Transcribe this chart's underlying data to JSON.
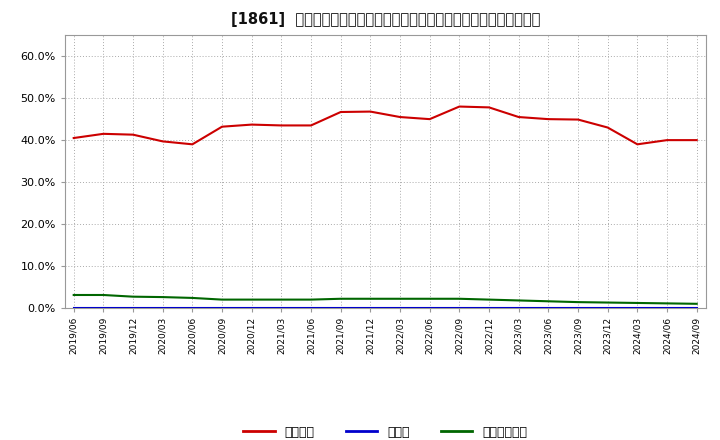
{
  "title": "[1861]  自己資本、のれん、繰延税金資産の総資産に対する比率の推移",
  "x_labels": [
    "2019/06",
    "2019/09",
    "2019/12",
    "2020/03",
    "2020/06",
    "2020/09",
    "2020/12",
    "2021/03",
    "2021/06",
    "2021/09",
    "2021/12",
    "2022/03",
    "2022/06",
    "2022/09",
    "2022/12",
    "2023/03",
    "2023/06",
    "2023/09",
    "2023/12",
    "2024/03",
    "2024/06",
    "2024/09"
  ],
  "equity": [
    0.405,
    0.415,
    0.413,
    0.397,
    0.39,
    0.432,
    0.437,
    0.435,
    0.435,
    0.467,
    0.468,
    0.455,
    0.45,
    0.48,
    0.478,
    0.455,
    0.45,
    0.449,
    0.43,
    0.39,
    0.4,
    0.4
  ],
  "goodwill": [
    0.0,
    0.0,
    0.0,
    0.0,
    0.0,
    0.0,
    0.0,
    0.0,
    0.0,
    0.0,
    0.0,
    0.0,
    0.0,
    0.0,
    0.0,
    0.0,
    0.0,
    0.0,
    0.0,
    0.0,
    0.0,
    0.0
  ],
  "deferred_tax": [
    0.031,
    0.031,
    0.027,
    0.026,
    0.024,
    0.02,
    0.02,
    0.02,
    0.02,
    0.022,
    0.022,
    0.022,
    0.022,
    0.022,
    0.02,
    0.018,
    0.016,
    0.014,
    0.013,
    0.012,
    0.011,
    0.01
  ],
  "equity_color": "#cc0000",
  "goodwill_color": "#0000cc",
  "deferred_tax_color": "#006600",
  "background_color": "#ffffff",
  "plot_bg_color": "#ffffff",
  "grid_color": "#aaaaaa",
  "ylim": [
    0.0,
    0.65
  ],
  "yticks": [
    0.0,
    0.1,
    0.2,
    0.3,
    0.4,
    0.5,
    0.6
  ],
  "legend_labels": [
    "自己資本",
    "のれん",
    "繰延税金資産"
  ]
}
